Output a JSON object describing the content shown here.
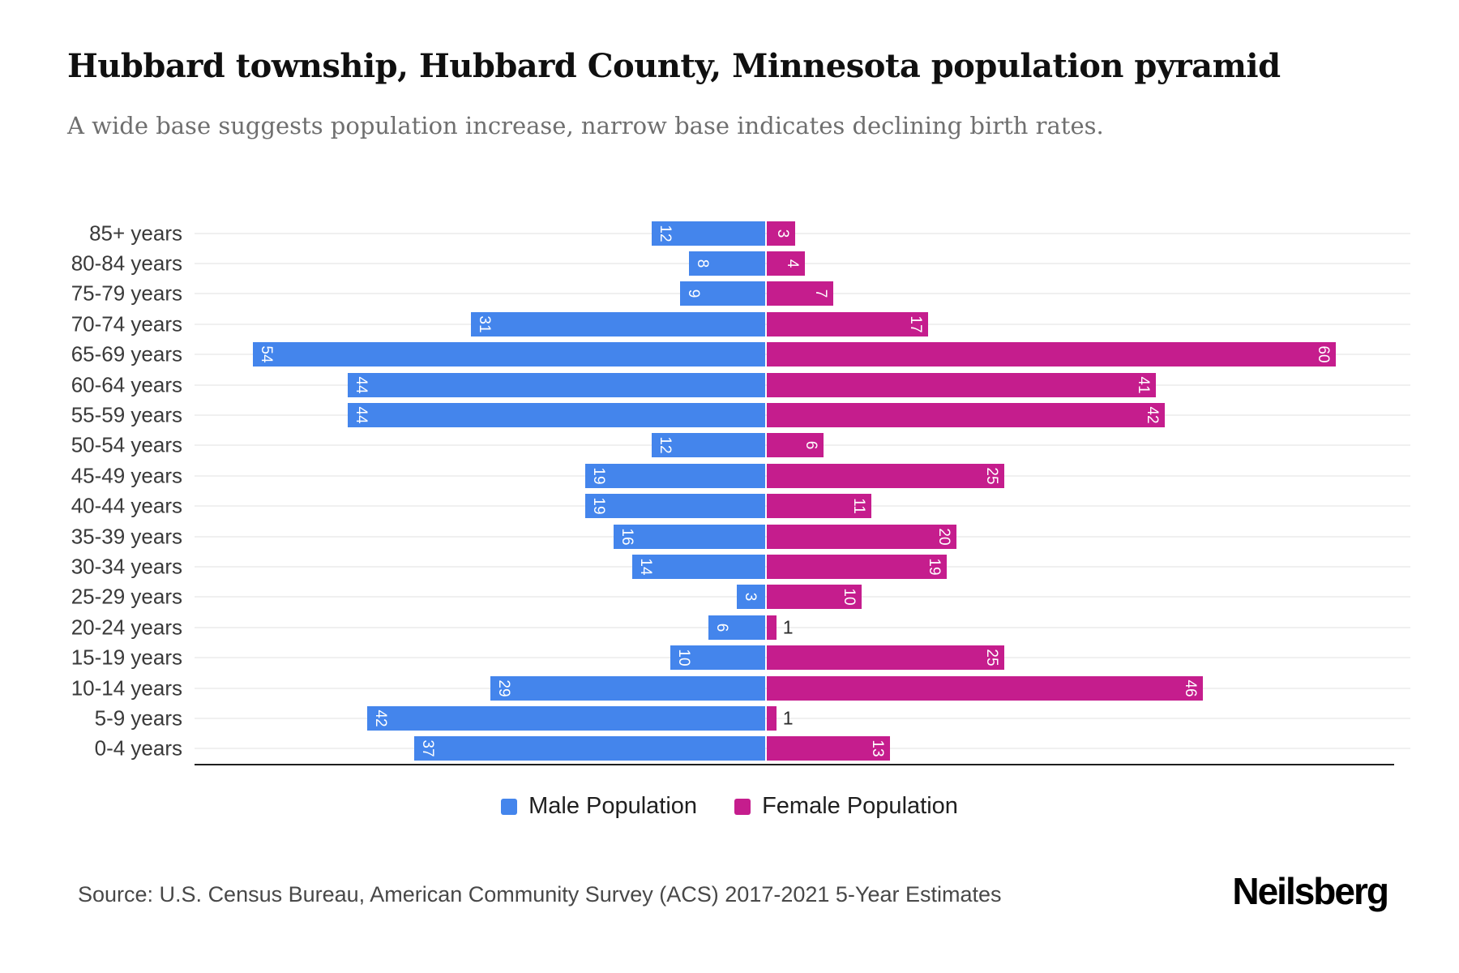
{
  "header": {
    "title": "Hubbard township, Hubbard County, Minnesota population pyramid",
    "subtitle": "A wide base suggests population increase, narrow base indicates declining birth rates."
  },
  "chart_data": {
    "type": "bar",
    "variant": "population-pyramid",
    "orientation": "horizontal",
    "categories": [
      "85+ years",
      "80-84 years",
      "75-79 years",
      "70-74 years",
      "65-69 years",
      "60-64 years",
      "55-59 years",
      "50-54 years",
      "45-49 years",
      "40-44 years",
      "35-39 years",
      "30-34 years",
      "25-29 years",
      "20-24 years",
      "15-19 years",
      "10-14 years",
      "5-9 years",
      "0-4 years"
    ],
    "series": [
      {
        "name": "Male Population",
        "side": "left",
        "color": "#4485ec",
        "values": [
          12,
          8,
          9,
          31,
          54,
          44,
          44,
          12,
          19,
          19,
          16,
          14,
          3,
          6,
          10,
          29,
          42,
          37
        ]
      },
      {
        "name": "Female Population",
        "side": "right",
        "color": "#c51d8d",
        "values": [
          3,
          4,
          7,
          17,
          60,
          41,
          42,
          6,
          25,
          11,
          20,
          19,
          10,
          1,
          25,
          46,
          1,
          13
        ]
      }
    ],
    "value_axis_max_each_side": 62,
    "value_labels": "inside bar ends, rotated 90deg, white; outside in dark gray when bar too small",
    "grid": "light horizontal line per row",
    "legend_position": "bottom-center",
    "baseline_axis": "bottom"
  },
  "footer": {
    "source": "Source: U.S. Census Bureau, American Community Survey (ACS) 2017-2021 5-Year Estimates",
    "brand": "Neilsberg"
  }
}
